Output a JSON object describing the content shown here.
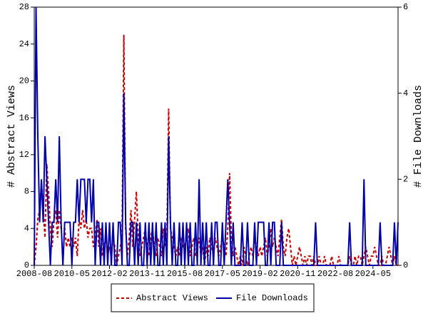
{
  "chart_data": {
    "type": "line",
    "x": [
      "2008-08",
      "2008-09",
      "2008-10",
      "2008-11",
      "2008-12",
      "2009-01",
      "2009-02",
      "2009-03",
      "2009-04",
      "2009-05",
      "2009-06",
      "2009-07",
      "2009-08",
      "2009-09",
      "2009-10",
      "2009-11",
      "2009-12",
      "2010-01",
      "2010-02",
      "2010-03",
      "2010-04",
      "2010-05",
      "2010-06",
      "2010-07",
      "2010-08",
      "2010-09",
      "2010-10",
      "2010-11",
      "2010-12",
      "2011-01",
      "2011-02",
      "2011-03",
      "2011-04",
      "2011-05",
      "2011-06",
      "2011-07",
      "2011-08",
      "2011-09",
      "2011-10",
      "2011-11",
      "2011-12",
      "2012-01",
      "2012-02",
      "2012-03",
      "2012-04",
      "2012-05",
      "2012-06",
      "2012-07",
      "2012-08",
      "2012-09",
      "2012-10",
      "2012-11",
      "2012-12",
      "2013-01",
      "2013-02",
      "2013-03",
      "2013-04",
      "2013-05",
      "2013-06",
      "2013-07",
      "2013-08",
      "2013-09",
      "2013-10",
      "2013-11",
      "2013-12",
      "2014-01",
      "2014-02",
      "2014-03",
      "2014-04",
      "2014-05",
      "2014-06",
      "2014-07",
      "2014-08",
      "2014-09",
      "2014-10",
      "2014-11",
      "2014-12",
      "2015-01",
      "2015-02",
      "2015-03",
      "2015-04",
      "2015-05",
      "2015-06",
      "2015-07",
      "2015-08",
      "2015-09",
      "2015-10",
      "2015-11",
      "2015-12",
      "2016-01",
      "2016-02",
      "2016-03",
      "2016-04",
      "2016-05",
      "2016-06",
      "2016-07",
      "2016-08",
      "2016-09",
      "2016-10",
      "2016-11",
      "2016-12",
      "2017-01",
      "2017-02",
      "2017-03",
      "2017-04",
      "2017-05",
      "2017-06",
      "2017-07",
      "2017-08",
      "2017-09",
      "2017-10",
      "2017-11",
      "2017-12",
      "2018-01",
      "2018-02",
      "2018-03",
      "2018-04",
      "2018-05",
      "2018-06",
      "2018-07",
      "2018-08",
      "2018-09",
      "2018-10",
      "2018-11",
      "2018-12",
      "2019-01",
      "2019-02",
      "2019-03",
      "2019-04",
      "2019-05",
      "2019-06",
      "2019-07",
      "2019-08",
      "2019-09",
      "2019-10",
      "2019-11",
      "2019-12",
      "2020-01",
      "2020-02",
      "2020-03",
      "2020-04",
      "2020-05",
      "2020-06",
      "2020-07",
      "2020-08",
      "2020-09",
      "2020-10",
      "2020-11",
      "2020-12",
      "2021-01",
      "2021-02",
      "2021-03",
      "2021-04",
      "2021-05",
      "2021-06",
      "2021-07",
      "2021-08",
      "2021-09",
      "2021-10",
      "2021-11",
      "2021-12",
      "2022-01",
      "2022-02",
      "2022-03",
      "2022-04",
      "2022-05",
      "2022-06",
      "2022-07",
      "2022-08",
      "2022-09",
      "2022-10",
      "2022-11",
      "2022-12",
      "2023-01",
      "2023-02",
      "2023-03",
      "2023-04",
      "2023-05",
      "2023-06",
      "2023-07",
      "2023-08",
      "2023-09",
      "2023-10",
      "2023-11",
      "2023-12",
      "2024-01",
      "2024-02",
      "2024-03",
      "2024-04",
      "2024-05",
      "2024-06",
      "2024-07",
      "2024-08",
      "2024-09",
      "2024-10",
      "2024-11",
      "2024-12",
      "2025-01",
      "2025-02",
      "2025-03",
      "2025-04",
      "2025-05",
      "2025-06",
      "2025-07"
    ],
    "xticks": [
      "2008-08",
      "2010-05",
      "2012-02",
      "2013-11",
      "2015-08",
      "2017-05",
      "2019-02",
      "2020-11",
      "2022-08",
      "2024-05"
    ],
    "ylabel": "# Abstract Views",
    "y2label": "# File Downloads",
    "ylim": [
      0,
      28
    ],
    "yticks": [
      0,
      4,
      8,
      12,
      16,
      20,
      24,
      28
    ],
    "y2lim": [
      0,
      6
    ],
    "y2ticks": [
      0,
      2,
      4,
      6
    ],
    "legend": "bottom",
    "series": [
      {
        "name": "Abstract Views",
        "color": "#cc0000",
        "dash": true,
        "values": [
          0,
          2,
          5,
          6,
          9,
          6,
          3,
          11,
          8,
          4,
          2,
          5,
          6,
          3,
          6,
          4,
          4,
          4,
          2,
          3,
          2,
          3,
          2,
          3,
          1,
          5,
          4,
          6,
          4,
          5,
          3,
          4,
          4,
          2,
          3,
          5,
          2,
          4,
          1,
          2,
          3,
          1,
          2,
          1,
          3,
          2,
          0,
          1,
          2,
          3,
          25,
          4,
          1,
          3,
          6,
          2,
          5,
          8,
          3,
          1,
          2,
          3,
          4,
          2,
          1,
          3,
          4,
          2,
          1,
          3,
          2,
          1,
          4,
          2,
          3,
          17,
          4,
          3,
          2,
          1,
          2,
          1,
          3,
          2,
          2,
          3,
          4,
          1,
          2,
          3,
          1,
          2,
          3,
          1,
          2,
          0,
          2,
          1,
          3,
          2,
          1,
          3,
          2,
          1,
          2,
          3,
          2,
          1,
          4,
          10,
          3,
          1,
          2,
          1,
          0,
          1,
          0,
          2,
          1,
          0,
          1,
          2,
          1,
          3,
          2,
          1,
          2,
          1,
          2,
          3,
          1,
          2,
          4,
          2,
          3,
          2,
          1,
          3,
          5,
          2,
          1,
          3,
          4,
          2,
          0,
          1,
          0,
          1,
          2,
          1,
          0,
          1,
          0,
          1,
          1,
          0,
          1,
          0,
          0,
          1,
          0,
          0,
          1,
          0,
          0,
          0,
          1,
          0,
          0,
          0,
          1,
          0,
          0,
          0,
          0,
          0,
          1,
          0,
          0,
          1,
          0,
          1,
          1,
          0,
          1,
          2,
          1,
          0,
          1,
          1,
          2,
          1,
          0,
          0,
          1,
          0,
          0,
          1,
          2,
          1,
          0,
          1,
          0,
          0
        ]
      },
      {
        "name": "File Downloads",
        "color": "#0000aa",
        "axis": "y2",
        "values": [
          0,
          6,
          3,
          1,
          2,
          1,
          3,
          2,
          1,
          0,
          1,
          1,
          2,
          1,
          3,
          1,
          0,
          1,
          1,
          1,
          1,
          0,
          1,
          1,
          2,
          1,
          2,
          2,
          2,
          1,
          2,
          2,
          1,
          2,
          0,
          1,
          1,
          0,
          1,
          0,
          1,
          0,
          1,
          0,
          1,
          0,
          0,
          1,
          1,
          0,
          4,
          1,
          0,
          0,
          1,
          1,
          0,
          1,
          0,
          1,
          0,
          0,
          1,
          0,
          1,
          0,
          1,
          0,
          1,
          0,
          0,
          1,
          0,
          1,
          0,
          3,
          1,
          0,
          1,
          0,
          0,
          1,
          0,
          1,
          0,
          1,
          0,
          1,
          0,
          0,
          1,
          0,
          2,
          0,
          1,
          0,
          1,
          0,
          0,
          1,
          0,
          1,
          1,
          0,
          0,
          1,
          0,
          1,
          2,
          1,
          0,
          1,
          0,
          0,
          0,
          0,
          1,
          0,
          0,
          1,
          0,
          0,
          0,
          1,
          0,
          1,
          1,
          1,
          1,
          0,
          0,
          1,
          0,
          1,
          1,
          0,
          0,
          0,
          1,
          0,
          0,
          0,
          0,
          0,
          0,
          0,
          0,
          0,
          0,
          0,
          0,
          0,
          0,
          0,
          0,
          0,
          0,
          1,
          0,
          0,
          0,
          0,
          0,
          0,
          0,
          0,
          0,
          0,
          0,
          0,
          0,
          0,
          0,
          0,
          0,
          0,
          1,
          0,
          0,
          0,
          0,
          0,
          0,
          0,
          2,
          0,
          0,
          0,
          0,
          0,
          0,
          0,
          0,
          1,
          0,
          0,
          0,
          0,
          0,
          0,
          0,
          1,
          0,
          1
        ]
      }
    ]
  }
}
